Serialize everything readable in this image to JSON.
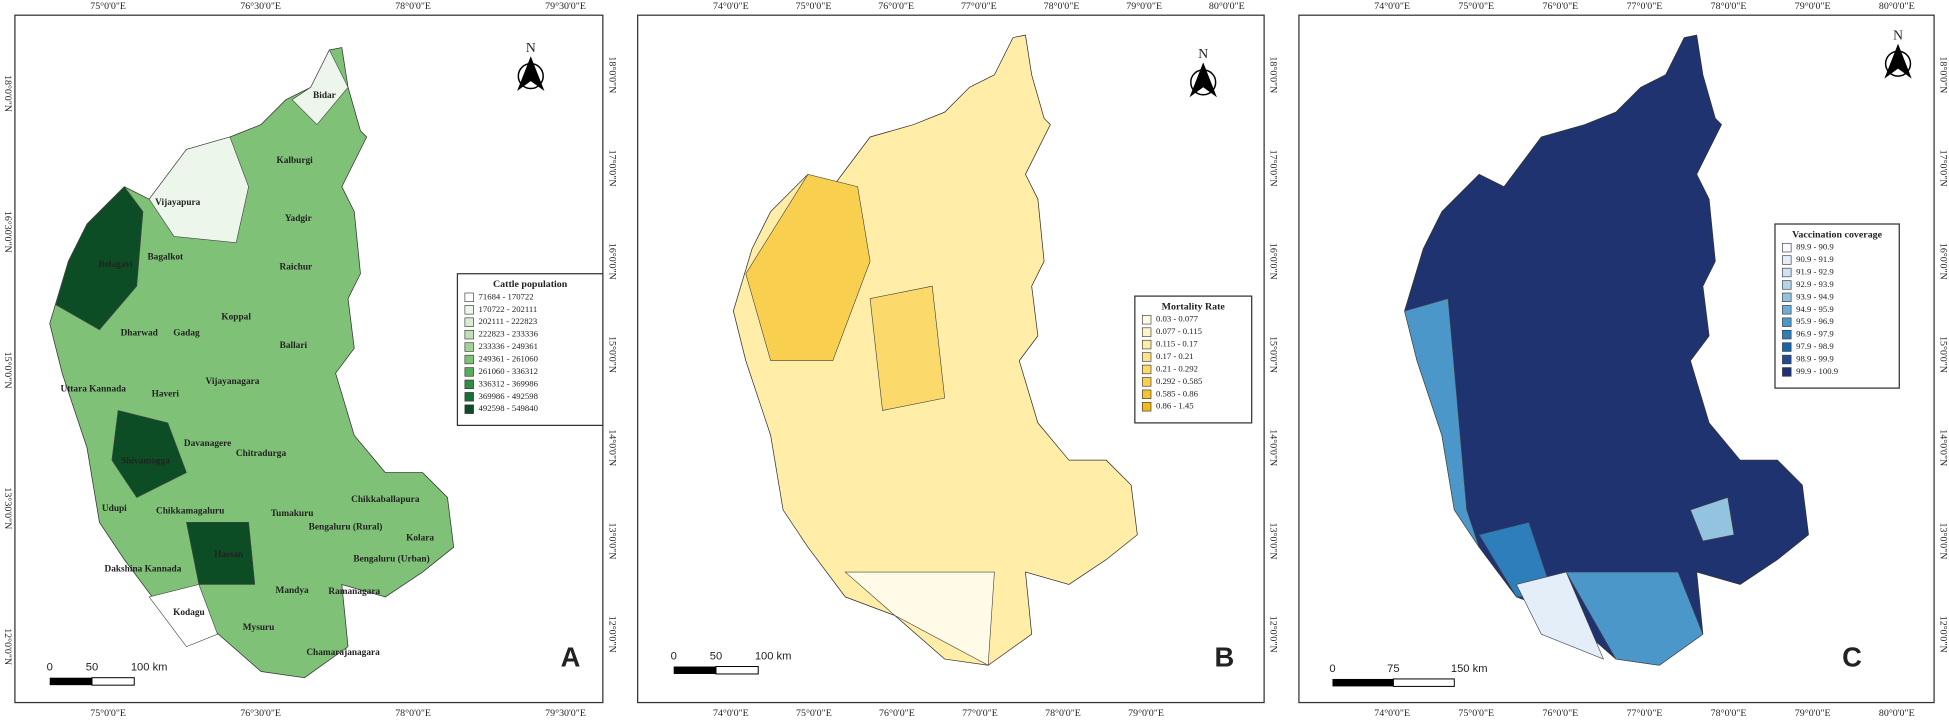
{
  "panels": [
    {
      "letter": "A",
      "north": "N",
      "top_labels": [
        "75°0'0\"E",
        "76°30'0\"E",
        "78°0'0\"E",
        "79°30'0\"E"
      ],
      "bottom_labels": [
        "75°0'0\"E",
        "76°30'0\"E",
        "78°0'0\"E",
        "79°30'0\"E"
      ],
      "left_labels": [
        "18°0'0\"N",
        "16°30'0\"N",
        "15°0'0\"N",
        "13°30'0\"N",
        "12°0'0\"N"
      ],
      "right_labels": [
        "18°0'0\"N",
        "17°0'0\"N",
        "16°0'0\"N",
        "15°0'0\"N",
        "14°0'0\"N",
        "13°0'0\"N",
        "12°0'0\"N"
      ],
      "legend": {
        "title": "Cattle population",
        "items": [
          {
            "label": "71684 - 170722",
            "color": "#ffffff"
          },
          {
            "label": "170722 - 202111",
            "color": "#edf6ea"
          },
          {
            "label": "202111 - 222823",
            "color": "#d8ecd2"
          },
          {
            "label": "222823 - 233336",
            "color": "#c0e0b7"
          },
          {
            "label": "233336 - 249361",
            "color": "#a2d296"
          },
          {
            "label": "249361 - 261060",
            "color": "#7fc177"
          },
          {
            "label": "261060 - 336312",
            "color": "#57ab5d"
          },
          {
            "label": "336312 - 369986",
            "color": "#2f8f46"
          },
          {
            "label": "369986 - 492598",
            "color": "#16703a"
          },
          {
            "label": "492598 - 549840",
            "color": "#0d4d26"
          }
        ]
      },
      "scale": [
        "0",
        "50",
        "100 km"
      ],
      "districts": [
        "Bidar",
        "Kalburgi",
        "Vijayapura",
        "Yadgir",
        "Belagavi",
        "Bagalkot",
        "Raichur",
        "Dharwad",
        "Gadag",
        "Koppal",
        "Ballari",
        "Uttara Kannada",
        "Haveri",
        "Vijayanagara",
        "Davanagere",
        "Chitradurga",
        "Shivamogga",
        "Udupi",
        "Chikkamagaluru",
        "Tumakuru",
        "Chikkaballapura",
        "Bengaluru (Rural)",
        "Kolara",
        "Hassan",
        "Dakshina Kannada",
        "Bengaluru (Urban)",
        "Mandya",
        "Ramanagara",
        "Kodagu",
        "Mysuru",
        "Chamarajanagara"
      ]
    },
    {
      "letter": "B",
      "north": "N",
      "top_labels": [
        "74°0'0\"E",
        "75°0'0\"E",
        "76°0'0\"E",
        "77°0'0\"E",
        "78°0'0\"E",
        "79°0'0\"E",
        "80°0'0\"E"
      ],
      "bottom_labels": [
        "74°0'0\"E",
        "75°0'0\"E",
        "76°0'0\"E",
        "77°0'0\"E",
        "78°0'0\"E",
        "79°0'0\"E"
      ],
      "right_labels": [
        "18°0'0\"N",
        "17°0'0\"N",
        "16°0'0\"N",
        "15°0'0\"N",
        "14°0'0\"N",
        "13°0'0\"N",
        "12°0'0\"N"
      ],
      "legend": {
        "title": "Mortality Rate",
        "items": [
          {
            "label": "0.03 - 0.077",
            "color": "#fffbe6"
          },
          {
            "label": "0.077 - 0.115",
            "color": "#fff4c8"
          },
          {
            "label": "0.115 - 0.17",
            "color": "#ffeda8"
          },
          {
            "label": "0.17 - 0.21",
            "color": "#fde38a"
          },
          {
            "label": "0.21 - 0.292",
            "color": "#fbd96b"
          },
          {
            "label": "0.292 - 0.585",
            "color": "#f8cf4e"
          },
          {
            "label": "0.585 - 0.86",
            "color": "#f4c430"
          },
          {
            "label": "0.86 - 1.45",
            "color": "#f0b91c"
          }
        ]
      },
      "scale": [
        "0",
        "50",
        "100 km"
      ]
    },
    {
      "letter": "C",
      "north": "N",
      "top_labels": [
        "74°0'0\"E",
        "75°0'0\"E",
        "76°0'0\"E",
        "77°0'0\"E",
        "78°0'0\"E",
        "79°0'0\"E",
        "80°0'0\"E"
      ],
      "bottom_labels": [
        "74°0'0\"E",
        "75°0'0\"E",
        "76°0'0\"E",
        "77°0'0\"E",
        "78°0'0\"E",
        "79°0'0\"E",
        "80°0'0\"E"
      ],
      "right_labels": [
        "18°0'0\"N",
        "17°0'0\"N",
        "16°0'0\"N",
        "15°0'0\"N",
        "14°0'0\"N",
        "13°0'0\"N",
        "12°0'0\"N"
      ],
      "legend": {
        "title": "Vaccination coverage",
        "items": [
          {
            "label": "89.9 - 90.9",
            "color": "#f7fbff"
          },
          {
            "label": "90.9 - 91.9",
            "color": "#e3eef8"
          },
          {
            "label": "91.9 - 92.9",
            "color": "#cfe1f2"
          },
          {
            "label": "92.9 - 93.9",
            "color": "#b5d4e9"
          },
          {
            "label": "93.9 - 94.9",
            "color": "#93c3df"
          },
          {
            "label": "94.9 - 95.9",
            "color": "#6daed5"
          },
          {
            "label": "95.9 - 96.9",
            "color": "#4b97c9"
          },
          {
            "label": "96.9 - 97.9",
            "color": "#2f7ebc"
          },
          {
            "label": "97.9 - 98.9",
            "color": "#1764ab"
          },
          {
            "label": "98.9 - 99.9",
            "color": "#234a93"
          },
          {
            "label": "99.9 - 100.9",
            "color": "#1f3370"
          }
        ]
      },
      "scale": [
        "0",
        "75",
        "150 km"
      ]
    }
  ]
}
